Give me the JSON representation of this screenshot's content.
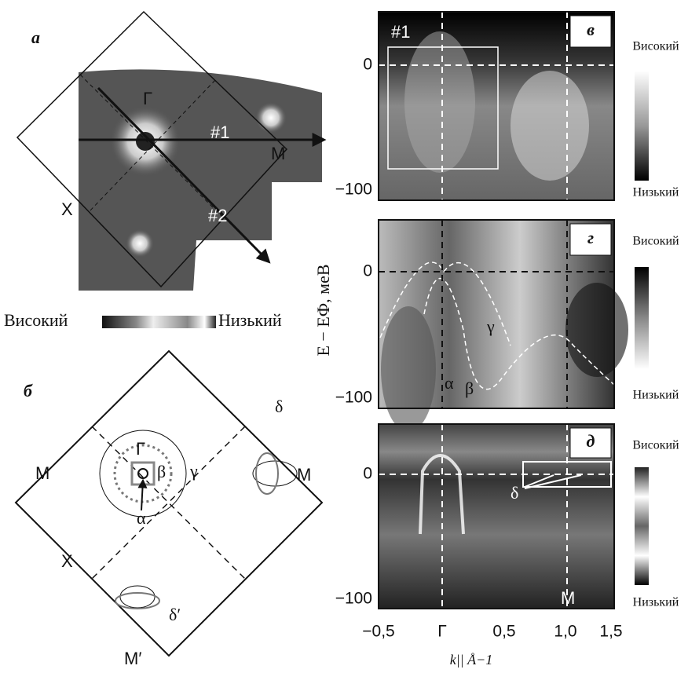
{
  "panel_a": {
    "label": "а",
    "gamma": "Γ",
    "m": "M",
    "x": "X",
    "cut1": "#1",
    "cut2": "#2",
    "colorbar_high": "Високий",
    "colorbar_low": "Низький"
  },
  "panel_b": {
    "label": "б",
    "gamma": "Γ",
    "m_left": "M",
    "m_right": "M",
    "x": "X",
    "m_prime": "M′",
    "alpha": "α",
    "beta": "β",
    "gamma_band": "γ",
    "delta": "δ",
    "delta_prime": "δ′"
  },
  "panel_v": {
    "label": "в",
    "cut": "#1",
    "yticks": [
      "0",
      "−100"
    ],
    "colorbar_high": "Високий",
    "colorbar_low": "Низький"
  },
  "panel_g": {
    "label": "г",
    "alpha": "α",
    "beta": "β",
    "gamma_band": "γ",
    "yticks": [
      "0",
      "−100"
    ],
    "colorbar_high": "Високий",
    "colorbar_low": "Низький"
  },
  "panel_d": {
    "label": "д",
    "m": "M",
    "delta": "δ",
    "yticks": [
      "0",
      "−100"
    ],
    "colorbar_high": "Високий",
    "colorbar_low": "Низький"
  },
  "y_axis_label": "E − EФ, меВ",
  "x_axis": {
    "ticks": [
      "−0,5",
      "Γ",
      "0,5",
      "1,0",
      "1,5"
    ],
    "label": "k||  Å−1"
  }
}
